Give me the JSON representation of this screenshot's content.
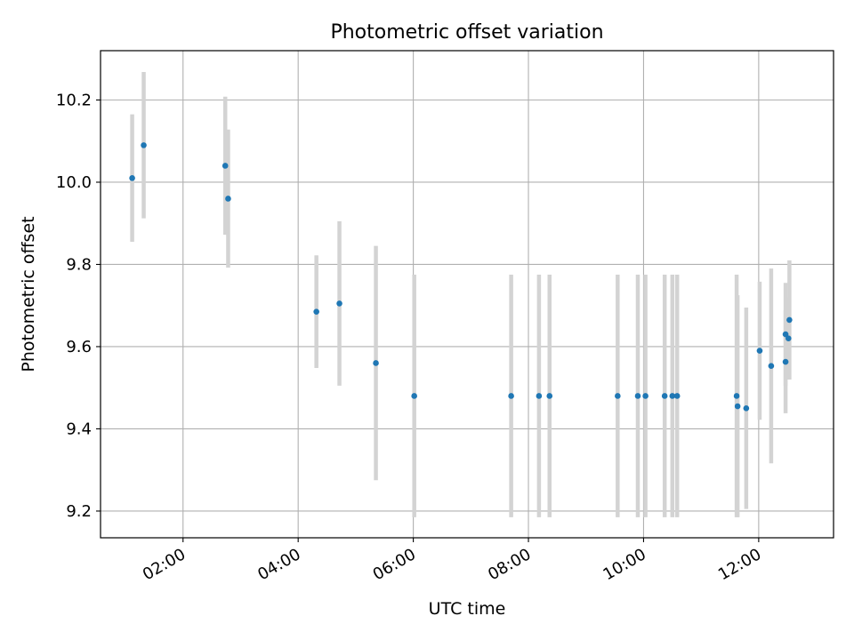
{
  "chart_data": {
    "type": "scatter",
    "title": "Photometric offset variation",
    "xlabel": "UTC time",
    "ylabel": "Photometric offset",
    "x_tick_labels": [
      "02:00",
      "04:00",
      "06:00",
      "08:00",
      "10:00",
      "12:00"
    ],
    "y_tick_labels": [
      "9.2",
      "9.4",
      "9.6",
      "9.8",
      "10.0",
      "10.2"
    ],
    "xlim": [
      "00:34",
      "13:18"
    ],
    "ylim": [
      9.135,
      10.32
    ],
    "grid": true,
    "series": [
      {
        "marker_color": "#1f77b4",
        "errorbar_color": "#d3d3d3",
        "points": [
          {
            "x": "01:07",
            "y": 10.01,
            "err": 0.155
          },
          {
            "x": "01:19",
            "y": 10.09,
            "err": 0.178
          },
          {
            "x": "02:44",
            "y": 10.04,
            "err": 0.168
          },
          {
            "x": "02:47",
            "y": 9.96,
            "err": 0.168
          },
          {
            "x": "04:19",
            "y": 9.685,
            "err": 0.137
          },
          {
            "x": "04:43",
            "y": 9.705,
            "err": 0.2
          },
          {
            "x": "05:21",
            "y": 9.56,
            "err": 0.285
          },
          {
            "x": "06:01",
            "y": 9.48,
            "err": 0.295
          },
          {
            "x": "07:42",
            "y": 9.48,
            "err": 0.295
          },
          {
            "x": "08:11",
            "y": 9.48,
            "err": 0.295
          },
          {
            "x": "08:22",
            "y": 9.48,
            "err": 0.295
          },
          {
            "x": "09:33",
            "y": 9.48,
            "err": 0.295
          },
          {
            "x": "09:54",
            "y": 9.48,
            "err": 0.295
          },
          {
            "x": "10:02",
            "y": 9.48,
            "err": 0.295
          },
          {
            "x": "10:22",
            "y": 9.48,
            "err": 0.295
          },
          {
            "x": "10:30",
            "y": 9.48,
            "err": 0.295
          },
          {
            "x": "10:35",
            "y": 9.48,
            "err": 0.295
          },
          {
            "x": "11:37",
            "y": 9.48,
            "err": 0.295
          },
          {
            "x": "11:38",
            "y": 9.455,
            "err": 0.27
          },
          {
            "x": "11:47",
            "y": 9.45,
            "err": 0.245
          },
          {
            "x": "12:01",
            "y": 9.59,
            "err": 0.168
          },
          {
            "x": "12:13",
            "y": 9.553,
            "err": 0.237
          },
          {
            "x": "12:28",
            "y": 9.63,
            "err": 0.125
          },
          {
            "x": "12:28",
            "y": 9.563,
            "err": 0.125
          },
          {
            "x": "12:31",
            "y": 9.62,
            "err": 0.1
          },
          {
            "x": "12:32",
            "y": 9.665,
            "err": 0.145
          }
        ]
      }
    ]
  }
}
